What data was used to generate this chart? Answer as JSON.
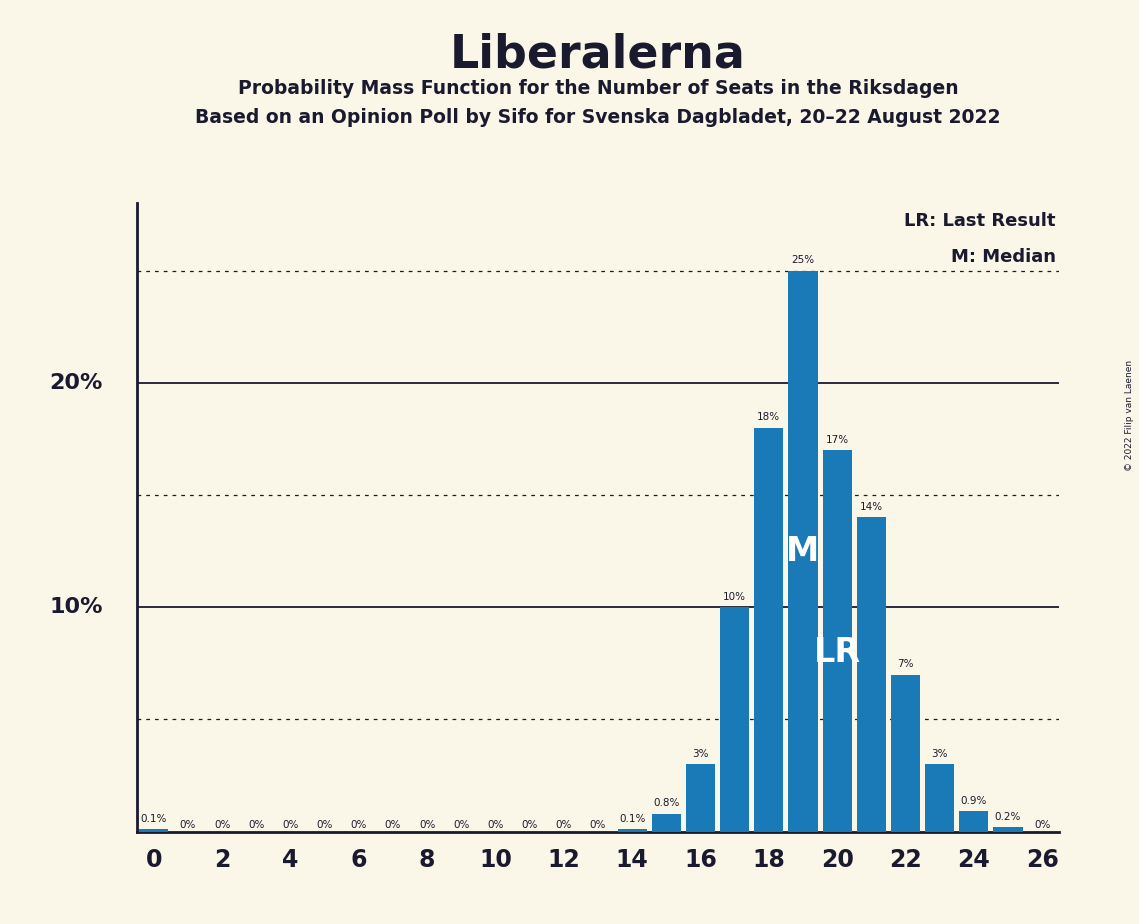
{
  "title": "Liberalerna",
  "subtitle1": "Probability Mass Function for the Number of Seats in the Riksdagen",
  "subtitle2": "Based on an Opinion Poll by Sifo for Svenska Dagbladet, 20–22 August 2022",
  "copyright": "© 2022 Filip van Laenen",
  "background_color": "#faf6e8",
  "bar_color": "#1a7ab8",
  "text_color": "#1a1a2e",
  "seats": [
    0,
    1,
    2,
    3,
    4,
    5,
    6,
    7,
    8,
    9,
    10,
    11,
    12,
    13,
    14,
    15,
    16,
    17,
    18,
    19,
    20,
    21,
    22,
    23,
    24,
    25,
    26
  ],
  "probabilities": [
    0.1,
    0.0,
    0.0,
    0.0,
    0.0,
    0.0,
    0.0,
    0.0,
    0.0,
    0.0,
    0.0,
    0.0,
    0.0,
    0.0,
    0.1,
    0.8,
    3.0,
    10.0,
    18.0,
    25.0,
    17.0,
    14.0,
    7.0,
    3.0,
    0.9,
    0.2,
    0.0
  ],
  "bar_labels": [
    "0.1%",
    "0%",
    "0%",
    "0%",
    "0%",
    "0%",
    "0%",
    "0%",
    "0%",
    "0%",
    "0%",
    "0%",
    "0%",
    "0%",
    "0.1%",
    "0.8%",
    "3%",
    "10%",
    "18%",
    "25%",
    "17%",
    "14%",
    "7%",
    "3%",
    "0.9%",
    "0.2%",
    "0%"
  ],
  "show_label_at_zero": [
    0,
    1,
    2,
    3,
    4,
    5,
    6,
    7,
    8,
    9,
    10,
    11,
    12,
    13,
    14,
    15,
    16,
    17,
    18,
    19,
    20,
    21,
    22,
    23,
    24,
    25,
    26
  ],
  "median_seat": 19,
  "last_result_seat": 20,
  "legend_lr": "LR: Last Result",
  "legend_m": "M: Median",
  "solid_yticks": [
    10,
    20
  ],
  "dotted_yticks": [
    5,
    15,
    25
  ],
  "ylim": [
    0,
    28
  ],
  "xlim": [
    -0.5,
    26.5
  ],
  "xlabel_ticks": [
    0,
    2,
    4,
    6,
    8,
    10,
    12,
    14,
    16,
    18,
    20,
    22,
    24,
    26
  ]
}
